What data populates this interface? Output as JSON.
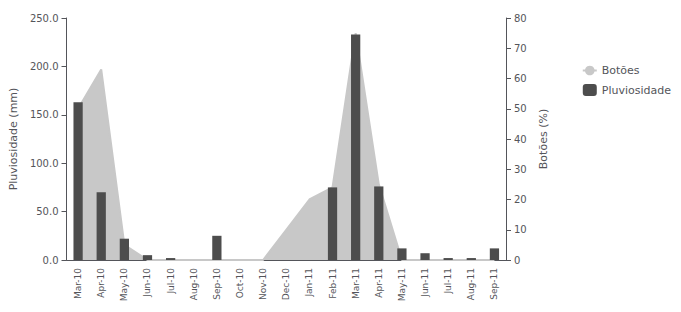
{
  "chart_data": {
    "type": "bar",
    "categories": [
      "Mar-10",
      "Apr-10",
      "May-10",
      "Jun-10",
      "Jul-10",
      "Aug-10",
      "Sep-10",
      "Oct-10",
      "Nov-10",
      "Dec-10",
      "Jan-11",
      "Feb-11",
      "Mar-11",
      "Apr-11",
      "May-11",
      "Jun-11",
      "Jul-11",
      "Aug-11",
      "Sep-11"
    ],
    "series": [
      {
        "name": "Botões",
        "type": "area",
        "axis": "y2",
        "color": "#c8c8c8",
        "values": [
          50,
          63,
          5,
          0,
          0,
          0,
          0,
          0,
          0,
          10,
          20,
          24,
          75,
          25,
          0,
          0,
          0,
          0,
          0
        ]
      },
      {
        "name": "Pluviosidade",
        "type": "bar",
        "color": "#4d4d4d",
        "values": [
          163,
          70,
          22,
          5,
          2,
          0,
          25,
          0,
          0,
          0,
          0,
          75,
          233,
          76,
          12,
          7,
          2,
          2,
          12
        ]
      }
    ],
    "y_label": "Pluviosidade (mm)",
    "y2_label": "Botões (%)",
    "ylim": [
      0,
      250
    ],
    "yticks": [
      {
        "value": 0,
        "label": "0.0"
      },
      {
        "value": 50,
        "label": "50.0"
      },
      {
        "value": 100,
        "label": "100.0"
      },
      {
        "value": 150,
        "label": "150.0"
      },
      {
        "value": 200,
        "label": "200.0"
      },
      {
        "value": 250,
        "label": "250.0"
      }
    ],
    "y2lim": [
      0,
      80
    ],
    "y2ticks": [
      0,
      10,
      20,
      30,
      40,
      50,
      60,
      70,
      80
    ],
    "grid": false,
    "legend": "right"
  }
}
